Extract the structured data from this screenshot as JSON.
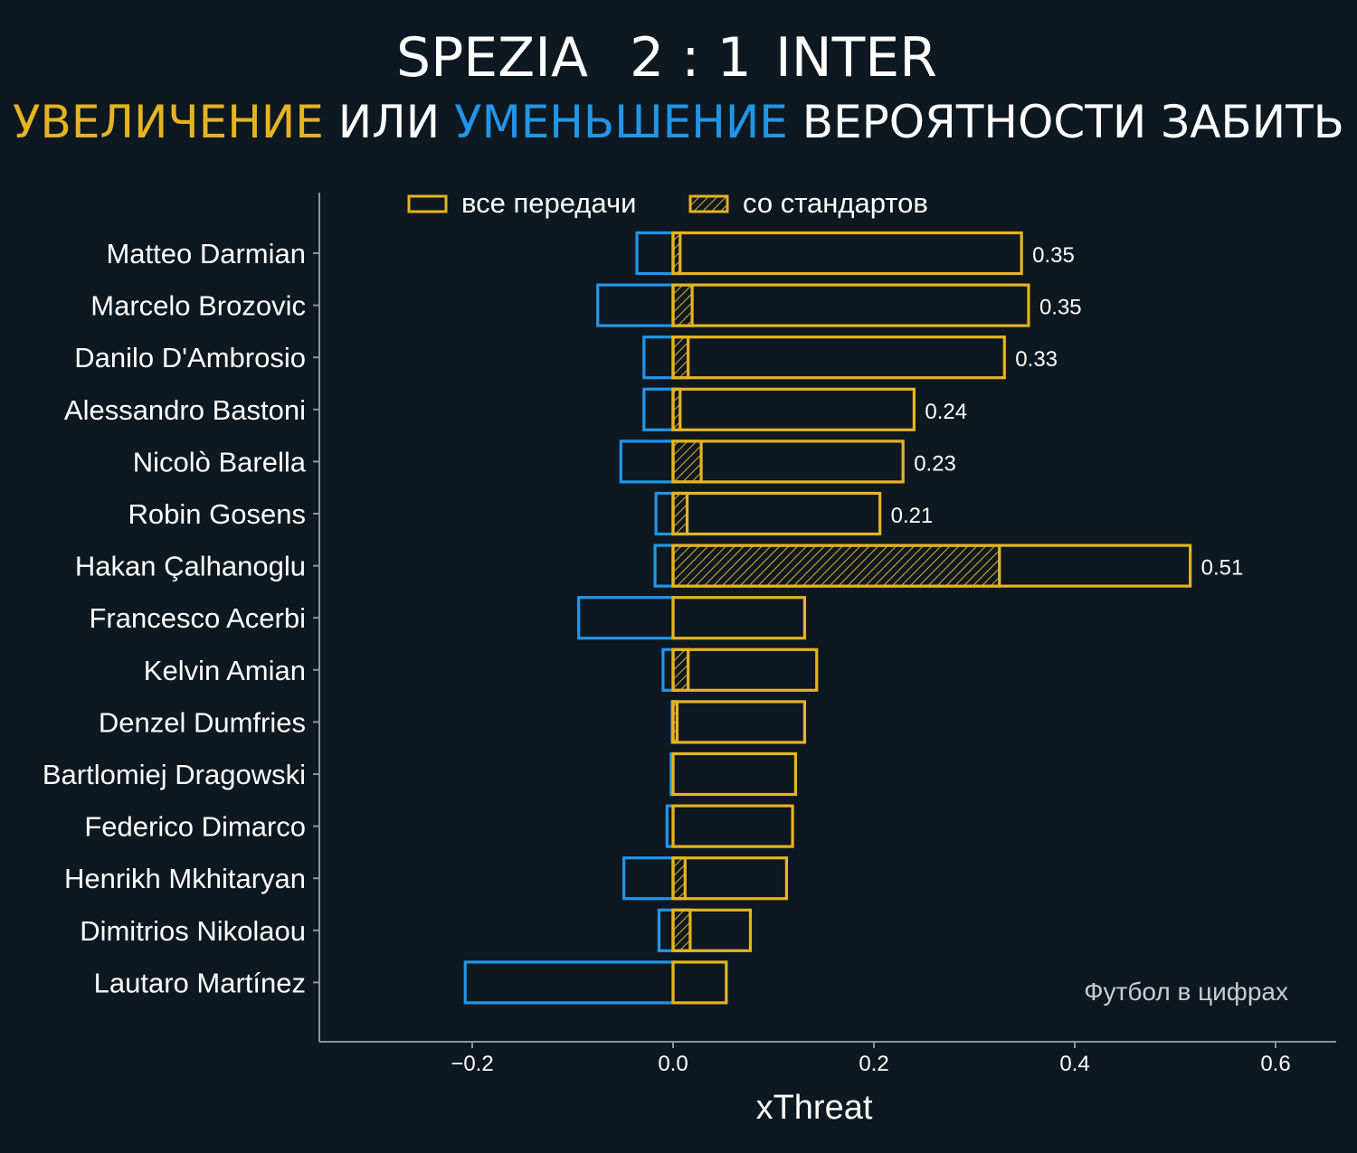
{
  "header": {
    "home_team": "SPEZIA",
    "score": "2 : 1",
    "away_team": "INTER",
    "subtitle_increase": "УВЕЛИЧЕНИЕ",
    "subtitle_or": "ИЛИ",
    "subtitle_decrease": "УМЕНЬШЕНИЕ",
    "subtitle_rest": "ВЕРОЯТНОСТИ ЗАБИТЬ"
  },
  "colors": {
    "background": "#0e1821",
    "positive": "#e6b422",
    "negative": "#2196e8",
    "text": "#ffffff",
    "axis": "#8a949c"
  },
  "watermark": "Футбол в цифрах",
  "chart_data": {
    "type": "bar",
    "orientation": "horizontal",
    "xlabel": "xThreat",
    "ylabel": "",
    "xlim": [
      -0.35,
      0.66
    ],
    "xticks": [
      -0.2,
      0.0,
      0.2,
      0.4,
      0.6
    ],
    "xtick_labels": [
      "−0.2",
      "0.0",
      "0.2",
      "0.4",
      "0.6"
    ],
    "grid": false,
    "legend_position": "top-center",
    "legend": [
      "все передачи",
      "со стандартов"
    ],
    "categories": [
      "Matteo Darmian",
      "Marcelo Brozovic",
      "Danilo D'Ambrosio",
      "Alessandro Bastoni",
      "Nicolò Barella",
      "Robin Gosens",
      "Hakan Çalhanoglu",
      "Francesco Acerbi",
      "Kelvin Amian",
      "Denzel Dumfries",
      "Bartlomiej Dragowski",
      "Federico Dimarco",
      "Henrikh Mkhitaryan",
      "Dimitrios Nikolaou",
      "Lautaro Martínez"
    ],
    "series": [
      {
        "name": "все передачи",
        "values": [
          0.347,
          0.354,
          0.33,
          0.24,
          0.229,
          0.206,
          0.515,
          0.131,
          0.143,
          0.131,
          0.122,
          0.119,
          0.113,
          0.077,
          0.053
        ]
      },
      {
        "name": "со стандартов",
        "values": [
          0.007,
          0.019,
          0.015,
          0.007,
          0.028,
          0.014,
          0.325,
          0.0,
          0.015,
          0.004,
          0.0,
          0.0,
          0.012,
          0.017,
          0.0
        ]
      },
      {
        "name": "negative",
        "values": [
          -0.036,
          -0.075,
          -0.029,
          -0.029,
          -0.052,
          -0.017,
          -0.018,
          -0.094,
          -0.01,
          -0.001,
          -0.002,
          -0.006,
          -0.049,
          -0.014,
          -0.207
        ]
      }
    ],
    "value_labels": [
      "0.35",
      "0.35",
      "0.33",
      "0.24",
      "0.23",
      "0.21",
      "0.51",
      "",
      "",
      "",
      "",
      "",
      "",
      "",
      ""
    ]
  }
}
